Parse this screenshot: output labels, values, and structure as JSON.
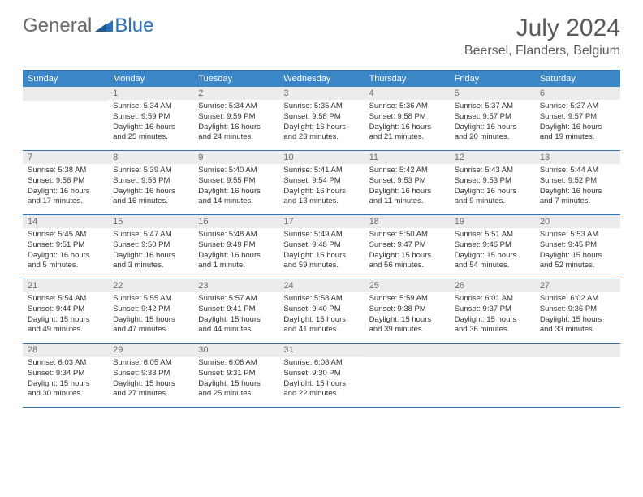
{
  "logo": {
    "text1": "General",
    "text2": "Blue"
  },
  "title": "July 2024",
  "location": "Beersel, Flanders, Belgium",
  "colors": {
    "header_bar": "#3b87c8",
    "accent": "#2d71b8",
    "daynum_bg": "#ececec",
    "text_gray": "#6a6a6a",
    "body_text": "#333333",
    "white": "#ffffff"
  },
  "dow": [
    "Sunday",
    "Monday",
    "Tuesday",
    "Wednesday",
    "Thursday",
    "Friday",
    "Saturday"
  ],
  "weeks": [
    [
      {
        "n": "",
        "sr": "",
        "ss": "",
        "dl": ""
      },
      {
        "n": "1",
        "sr": "Sunrise: 5:34 AM",
        "ss": "Sunset: 9:59 PM",
        "dl": "Daylight: 16 hours and 25 minutes."
      },
      {
        "n": "2",
        "sr": "Sunrise: 5:34 AM",
        "ss": "Sunset: 9:59 PM",
        "dl": "Daylight: 16 hours and 24 minutes."
      },
      {
        "n": "3",
        "sr": "Sunrise: 5:35 AM",
        "ss": "Sunset: 9:58 PM",
        "dl": "Daylight: 16 hours and 23 minutes."
      },
      {
        "n": "4",
        "sr": "Sunrise: 5:36 AM",
        "ss": "Sunset: 9:58 PM",
        "dl": "Daylight: 16 hours and 21 minutes."
      },
      {
        "n": "5",
        "sr": "Sunrise: 5:37 AM",
        "ss": "Sunset: 9:57 PM",
        "dl": "Daylight: 16 hours and 20 minutes."
      },
      {
        "n": "6",
        "sr": "Sunrise: 5:37 AM",
        "ss": "Sunset: 9:57 PM",
        "dl": "Daylight: 16 hours and 19 minutes."
      }
    ],
    [
      {
        "n": "7",
        "sr": "Sunrise: 5:38 AM",
        "ss": "Sunset: 9:56 PM",
        "dl": "Daylight: 16 hours and 17 minutes."
      },
      {
        "n": "8",
        "sr": "Sunrise: 5:39 AM",
        "ss": "Sunset: 9:56 PM",
        "dl": "Daylight: 16 hours and 16 minutes."
      },
      {
        "n": "9",
        "sr": "Sunrise: 5:40 AM",
        "ss": "Sunset: 9:55 PM",
        "dl": "Daylight: 16 hours and 14 minutes."
      },
      {
        "n": "10",
        "sr": "Sunrise: 5:41 AM",
        "ss": "Sunset: 9:54 PM",
        "dl": "Daylight: 16 hours and 13 minutes."
      },
      {
        "n": "11",
        "sr": "Sunrise: 5:42 AM",
        "ss": "Sunset: 9:53 PM",
        "dl": "Daylight: 16 hours and 11 minutes."
      },
      {
        "n": "12",
        "sr": "Sunrise: 5:43 AM",
        "ss": "Sunset: 9:53 PM",
        "dl": "Daylight: 16 hours and 9 minutes."
      },
      {
        "n": "13",
        "sr": "Sunrise: 5:44 AM",
        "ss": "Sunset: 9:52 PM",
        "dl": "Daylight: 16 hours and 7 minutes."
      }
    ],
    [
      {
        "n": "14",
        "sr": "Sunrise: 5:45 AM",
        "ss": "Sunset: 9:51 PM",
        "dl": "Daylight: 16 hours and 5 minutes."
      },
      {
        "n": "15",
        "sr": "Sunrise: 5:47 AM",
        "ss": "Sunset: 9:50 PM",
        "dl": "Daylight: 16 hours and 3 minutes."
      },
      {
        "n": "16",
        "sr": "Sunrise: 5:48 AM",
        "ss": "Sunset: 9:49 PM",
        "dl": "Daylight: 16 hours and 1 minute."
      },
      {
        "n": "17",
        "sr": "Sunrise: 5:49 AM",
        "ss": "Sunset: 9:48 PM",
        "dl": "Daylight: 15 hours and 59 minutes."
      },
      {
        "n": "18",
        "sr": "Sunrise: 5:50 AM",
        "ss": "Sunset: 9:47 PM",
        "dl": "Daylight: 15 hours and 56 minutes."
      },
      {
        "n": "19",
        "sr": "Sunrise: 5:51 AM",
        "ss": "Sunset: 9:46 PM",
        "dl": "Daylight: 15 hours and 54 minutes."
      },
      {
        "n": "20",
        "sr": "Sunrise: 5:53 AM",
        "ss": "Sunset: 9:45 PM",
        "dl": "Daylight: 15 hours and 52 minutes."
      }
    ],
    [
      {
        "n": "21",
        "sr": "Sunrise: 5:54 AM",
        "ss": "Sunset: 9:44 PM",
        "dl": "Daylight: 15 hours and 49 minutes."
      },
      {
        "n": "22",
        "sr": "Sunrise: 5:55 AM",
        "ss": "Sunset: 9:42 PM",
        "dl": "Daylight: 15 hours and 47 minutes."
      },
      {
        "n": "23",
        "sr": "Sunrise: 5:57 AM",
        "ss": "Sunset: 9:41 PM",
        "dl": "Daylight: 15 hours and 44 minutes."
      },
      {
        "n": "24",
        "sr": "Sunrise: 5:58 AM",
        "ss": "Sunset: 9:40 PM",
        "dl": "Daylight: 15 hours and 41 minutes."
      },
      {
        "n": "25",
        "sr": "Sunrise: 5:59 AM",
        "ss": "Sunset: 9:38 PM",
        "dl": "Daylight: 15 hours and 39 minutes."
      },
      {
        "n": "26",
        "sr": "Sunrise: 6:01 AM",
        "ss": "Sunset: 9:37 PM",
        "dl": "Daylight: 15 hours and 36 minutes."
      },
      {
        "n": "27",
        "sr": "Sunrise: 6:02 AM",
        "ss": "Sunset: 9:36 PM",
        "dl": "Daylight: 15 hours and 33 minutes."
      }
    ],
    [
      {
        "n": "28",
        "sr": "Sunrise: 6:03 AM",
        "ss": "Sunset: 9:34 PM",
        "dl": "Daylight: 15 hours and 30 minutes."
      },
      {
        "n": "29",
        "sr": "Sunrise: 6:05 AM",
        "ss": "Sunset: 9:33 PM",
        "dl": "Daylight: 15 hours and 27 minutes."
      },
      {
        "n": "30",
        "sr": "Sunrise: 6:06 AM",
        "ss": "Sunset: 9:31 PM",
        "dl": "Daylight: 15 hours and 25 minutes."
      },
      {
        "n": "31",
        "sr": "Sunrise: 6:08 AM",
        "ss": "Sunset: 9:30 PM",
        "dl": "Daylight: 15 hours and 22 minutes."
      },
      {
        "n": "",
        "sr": "",
        "ss": "",
        "dl": ""
      },
      {
        "n": "",
        "sr": "",
        "ss": "",
        "dl": ""
      },
      {
        "n": "",
        "sr": "",
        "ss": "",
        "dl": ""
      }
    ]
  ]
}
